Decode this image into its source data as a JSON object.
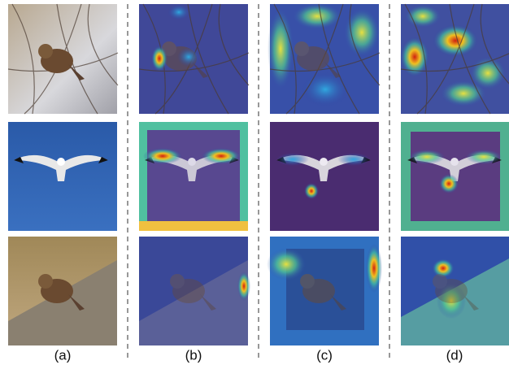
{
  "captions": [
    "(a)",
    "(b)",
    "(c)",
    "(d)"
  ]
}
